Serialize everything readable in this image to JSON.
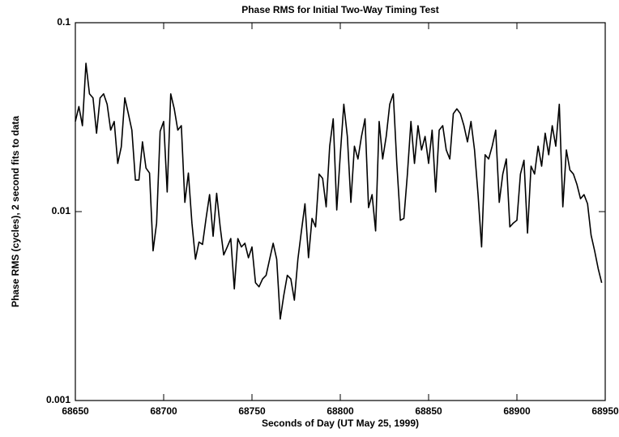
{
  "chart_data": {
    "type": "line",
    "title": "Phase RMS for Initial Two-Way Timing Test",
    "xlabel": "Seconds of Day (UT May 25, 1999)",
    "ylabel": "Phase RMS (cycles), 2 second fits to data",
    "log_y": true,
    "color": "#000000",
    "xlim": [
      68650,
      68950
    ],
    "xticks": [
      68650,
      68700,
      68750,
      68800,
      68850,
      68900,
      68950
    ],
    "ylim": [
      0.001,
      0.1
    ],
    "yticks": [
      0.001,
      0.01,
      0.1
    ],
    "x": [
      68650,
      68652,
      68654,
      68656,
      68658,
      68660,
      68662,
      68664,
      68666,
      68668,
      68670,
      68672,
      68674,
      68676,
      68678,
      68680,
      68682,
      68684,
      68686,
      68688,
      68690,
      68692,
      68694,
      68696,
      68698,
      68700,
      68702,
      68704,
      68706,
      68708,
      68710,
      68712,
      68714,
      68716,
      68718,
      68720,
      68722,
      68724,
      68726,
      68728,
      68730,
      68732,
      68734,
      68736,
      68738,
      68740,
      68742,
      68744,
      68746,
      68748,
      68750,
      68752,
      68754,
      68756,
      68758,
      68760,
      68762,
      68764,
      68766,
      68768,
      68770,
      68772,
      68774,
      68776,
      68778,
      68780,
      68782,
      68784,
      68786,
      68788,
      68790,
      68792,
      68794,
      68796,
      68798,
      68800,
      68802,
      68804,
      68806,
      68808,
      68810,
      68812,
      68814,
      68816,
      68818,
      68820,
      68822,
      68824,
      68826,
      68828,
      68830,
      68832,
      68834,
      68836,
      68838,
      68840,
      68842,
      68844,
      68846,
      68848,
      68850,
      68852,
      68854,
      68856,
      68858,
      68860,
      68862,
      68864,
      68866,
      68868,
      68870,
      68872,
      68874,
      68876,
      68878,
      68880,
      68882,
      68884,
      68886,
      68888,
      68890,
      68892,
      68894,
      68896,
      68898,
      68900,
      68902,
      68904,
      68906,
      68908,
      68910,
      68912,
      68914,
      68916,
      68918,
      68920,
      68922,
      68924,
      68926,
      68928,
      68930,
      68932,
      68934,
      68936,
      68938,
      68940,
      68942,
      68944,
      68946,
      68948
    ],
    "values": [
      0.03,
      0.036,
      0.0285,
      0.061,
      0.042,
      0.04,
      0.026,
      0.04,
      0.042,
      0.037,
      0.027,
      0.03,
      0.018,
      0.022,
      0.04,
      0.033,
      0.027,
      0.0147,
      0.0147,
      0.0234,
      0.017,
      0.016,
      0.0062,
      0.0087,
      0.0266,
      0.03,
      0.0127,
      0.042,
      0.035,
      0.027,
      0.0285,
      0.0112,
      0.016,
      0.0087,
      0.0056,
      0.0069,
      0.0067,
      0.0092,
      0.0123,
      0.0074,
      0.0125,
      0.0083,
      0.0059,
      0.0065,
      0.0072,
      0.0039,
      0.0072,
      0.0065,
      0.0068,
      0.0057,
      0.0065,
      0.0042,
      0.004,
      0.0044,
      0.0046,
      0.0056,
      0.0068,
      0.0056,
      0.0027,
      0.0036,
      0.0046,
      0.0044,
      0.0034,
      0.0056,
      0.0079,
      0.011,
      0.0057,
      0.0092,
      0.0083,
      0.0158,
      0.015,
      0.0106,
      0.0222,
      0.031,
      0.0102,
      0.02,
      0.037,
      0.025,
      0.0112,
      0.0222,
      0.019,
      0.025,
      0.031,
      0.0105,
      0.0123,
      0.0079,
      0.03,
      0.019,
      0.025,
      0.037,
      0.042,
      0.018,
      0.009,
      0.0092,
      0.0158,
      0.03,
      0.018,
      0.0285,
      0.0212,
      0.025,
      0.018,
      0.027,
      0.0127,
      0.027,
      0.0285,
      0.0212,
      0.019,
      0.033,
      0.035,
      0.033,
      0.0285,
      0.0234,
      0.03,
      0.0212,
      0.0123,
      0.0065,
      0.02,
      0.019,
      0.0222,
      0.027,
      0.0112,
      0.0158,
      0.019,
      0.0083,
      0.0087,
      0.009,
      0.0158,
      0.0187,
      0.0077,
      0.0174,
      0.0158,
      0.0222,
      0.0174,
      0.026,
      0.02,
      0.0285,
      0.0222,
      0.037,
      0.0106,
      0.0212,
      0.0166,
      0.0158,
      0.0139,
      0.0117,
      0.0123,
      0.011,
      0.0075,
      0.0062,
      0.005,
      0.0042
    ]
  }
}
